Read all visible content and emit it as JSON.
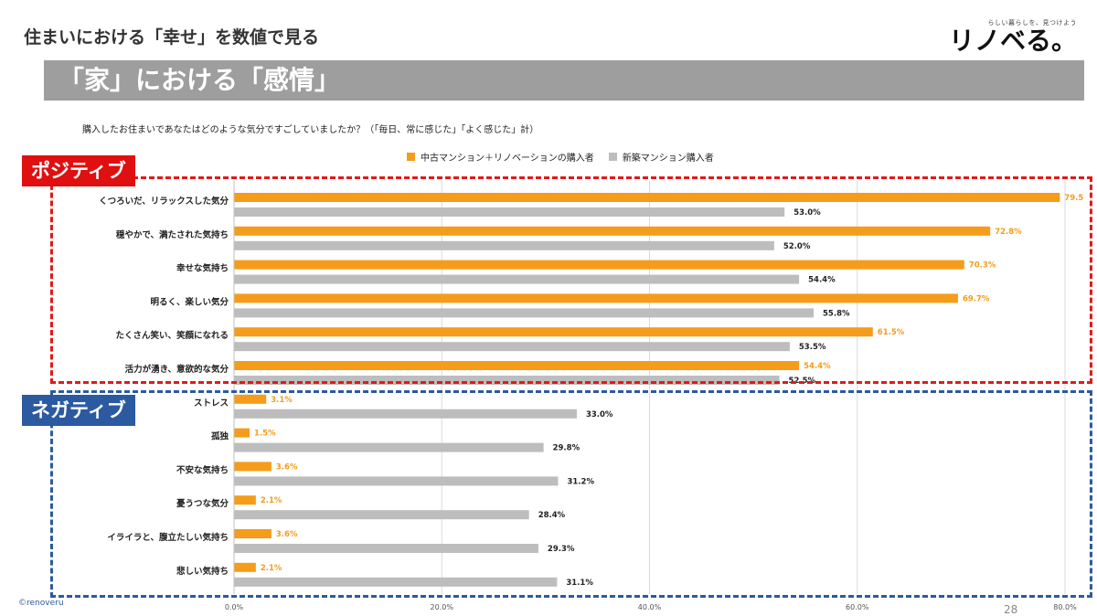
{
  "header": {
    "title": "住まいにおける「幸せ」を数値で見る",
    "logo_tagline": "らしい暮らしを、見つけよう",
    "logo_text": "リノベる。"
  },
  "banner": {
    "text": "「家」における「感情」"
  },
  "question": "購入したお住まいであなたはどのような気分ですごしていましたか？（「毎日、常に感じた」「よく感じた」計）",
  "groups": {
    "positive": "ポジティブ",
    "negative": "ネガティブ"
  },
  "footer": {
    "copyright": "©renoveru",
    "page": "28"
  },
  "colors": {
    "series1": "#f59c1a",
    "series2": "#bdbdbd",
    "positive": "#e01010",
    "negative": "#2c5aa0"
  },
  "chart_data": {
    "type": "bar",
    "orientation": "horizontal",
    "categories": [
      "くつろいだ、リラックスした気分",
      "穏やかで、満たされた気持ち",
      "幸せな気持ち",
      "明るく、楽しい気分",
      "たくさん笑い、笑顔になれる",
      "活力が湧き、意欲的な気分",
      "ストレス",
      "孤独",
      "不安な気持ち",
      "憂うつな気分",
      "イライラと、腹立たしい気持ち",
      "悲しい気持ち"
    ],
    "series": [
      {
        "name": "中古マンション＋リノベーションの購入者",
        "values": [
          79.5,
          72.8,
          70.3,
          69.7,
          61.5,
          54.4,
          3.1,
          1.5,
          3.6,
          2.1,
          3.6,
          2.1
        ],
        "labels": [
          "79.5",
          "72.8%",
          "70.3%",
          "69.7%",
          "61.5%",
          "54.4%",
          "3.1%",
          "1.5%",
          "3.6%",
          "2.1%",
          "3.6%",
          "2.1%"
        ]
      },
      {
        "name": "新築マンション購入者",
        "values": [
          53.0,
          52.0,
          54.4,
          55.8,
          53.5,
          52.5,
          33.0,
          29.8,
          31.2,
          28.4,
          29.3,
          31.1
        ],
        "labels": [
          "53.0%",
          "52.0%",
          "54.4%",
          "55.8%",
          "53.5%",
          "52.5%",
          "33.0%",
          "29.8%",
          "31.2%",
          "28.4%",
          "29.3%",
          "31.1%"
        ]
      }
    ],
    "xlim": [
      0,
      80
    ],
    "xticks": [
      "0.0%",
      "20.0%",
      "40.0%",
      "60.0%",
      "80.0%"
    ],
    "grid": true
  }
}
